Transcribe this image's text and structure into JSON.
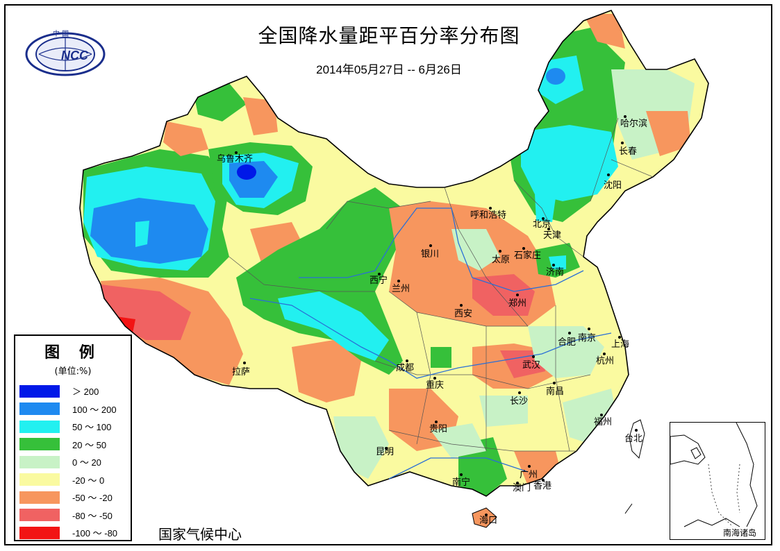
{
  "title": "全国降水量距平百分率分布图",
  "subtitle": "2014年05月27日 -- 6月26日",
  "logo_text": "NCC",
  "logo_top_text": "中 国",
  "legend": {
    "title": "图 例",
    "unit": "(单位:%)",
    "items": [
      {
        "label": "＞ 200",
        "color": "#0018e8"
      },
      {
        "label": "100 ～ 200",
        "color": "#1e8af0"
      },
      {
        "label": "50 ～ 100",
        "color": "#22f0f0"
      },
      {
        "label": "20 ～ 50",
        "color": "#36c03a"
      },
      {
        "label": "0 ～ 20",
        "color": "#c8f2c6"
      },
      {
        "label": "-20 ～ 0",
        "color": "#fafaa0"
      },
      {
        "label": "-50 ～ -20",
        "color": "#f7965e"
      },
      {
        "label": "-80 ～ -50",
        "color": "#f06262"
      },
      {
        "label": "-100 ～ -80",
        "color": "#f21414"
      }
    ]
  },
  "footer": "国家气候中心",
  "inset_label": "南海诸岛",
  "cities": [
    "乌鲁木齐",
    "拉萨",
    "西宁",
    "兰州",
    "银川",
    "呼和浩特",
    "北京",
    "天津",
    "石家庄",
    "太原",
    "济南",
    "郑州",
    "西安",
    "成都",
    "重庆",
    "贵阳",
    "昆明",
    "南宁",
    "广州",
    "香港",
    "澳门",
    "海口",
    "长沙",
    "武汉",
    "南昌",
    "合肥",
    "南京",
    "上海",
    "杭州",
    "福州",
    "台北",
    "哈尔滨",
    "长春",
    "沈阳"
  ]
}
